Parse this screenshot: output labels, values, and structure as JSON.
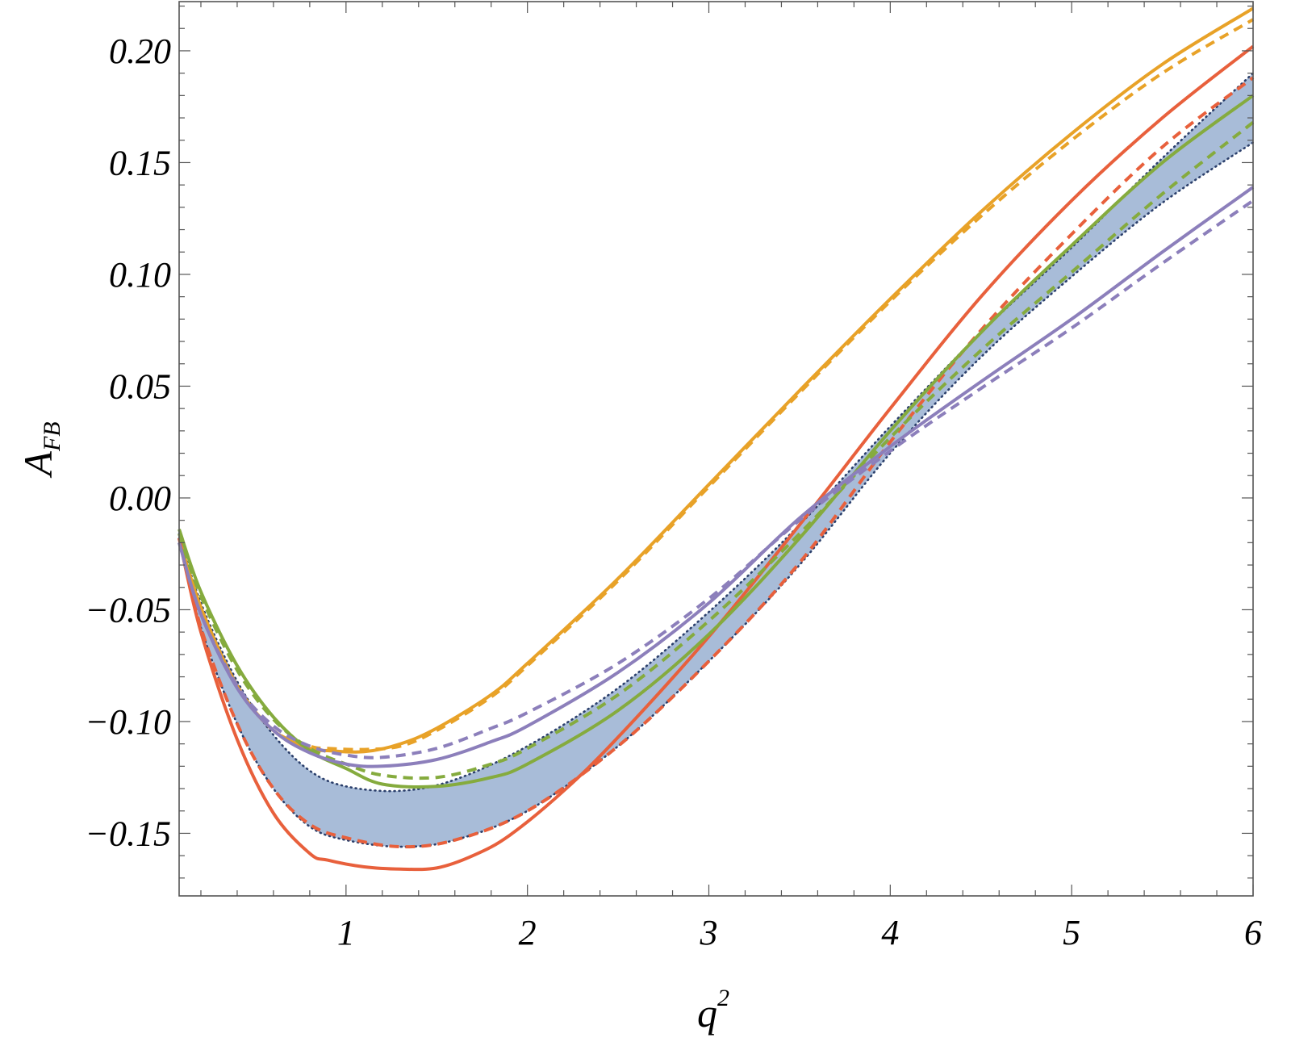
{
  "chart_data": {
    "type": "line",
    "xlabel": "q",
    "xlabel_superscript": "2",
    "ylabel": "A",
    "ylabel_subscript": "FB",
    "xlim": [
      0.08,
      6.0
    ],
    "ylim": [
      -0.178,
      0.222
    ],
    "x_ticks": [
      {
        "value": 1,
        "label": "1"
      },
      {
        "value": 2,
        "label": "2"
      },
      {
        "value": 3,
        "label": "3"
      },
      {
        "value": 4,
        "label": "4"
      },
      {
        "value": 5,
        "label": "5"
      },
      {
        "value": 6,
        "label": "6"
      }
    ],
    "y_ticks": [
      {
        "value": 0.2,
        "label": "0.20"
      },
      {
        "value": 0.15,
        "label": "0.15"
      },
      {
        "value": 0.1,
        "label": "0.10"
      },
      {
        "value": 0.05,
        "label": "0.05"
      },
      {
        "value": 0.0,
        "label": "0.00"
      },
      {
        "value": -0.05,
        "label": "−0.05"
      },
      {
        "value": -0.1,
        "label": "−0.10"
      },
      {
        "value": -0.15,
        "label": "−0.15"
      }
    ],
    "grid": false,
    "legend": "none",
    "band": {
      "fill": "#a8bcd8",
      "edge_color": "#2b3f6b",
      "x": [
        0.08,
        0.2,
        0.4,
        0.6,
        0.8,
        1.0,
        1.3,
        1.6,
        2.0,
        2.5,
        3.0,
        3.5,
        4.0,
        4.5,
        5.0,
        5.5,
        6.0
      ],
      "upper": [
        -0.016,
        -0.047,
        -0.082,
        -0.106,
        -0.122,
        -0.129,
        -0.131,
        -0.126,
        -0.111,
        -0.085,
        -0.051,
        -0.012,
        0.032,
        0.074,
        0.112,
        0.152,
        0.19
      ],
      "lower": [
        -0.018,
        -0.058,
        -0.101,
        -0.13,
        -0.147,
        -0.153,
        -0.156,
        -0.153,
        -0.14,
        -0.111,
        -0.073,
        -0.03,
        0.02,
        0.063,
        0.099,
        0.132,
        0.159
      ]
    },
    "series": [
      {
        "color": "#e8a228",
        "style": "solid",
        "x": [
          0.08,
          0.2,
          0.4,
          0.6,
          0.8,
          0.9,
          1.1,
          1.3,
          1.5,
          1.8,
          2.0,
          2.5,
          3.0,
          3.5,
          4.0,
          4.5,
          5.0,
          5.5,
          6.0
        ],
        "y": [
          -0.018,
          -0.049,
          -0.084,
          -0.104,
          -0.112,
          -0.113,
          -0.1135,
          -0.11,
          -0.103,
          -0.088,
          -0.074,
          -0.036,
          0.006,
          0.048,
          0.089,
          0.128,
          0.163,
          0.194,
          0.219
        ]
      },
      {
        "color": "#e8a228",
        "style": "dashed",
        "x": [
          0.08,
          0.2,
          0.4,
          0.6,
          0.8,
          0.9,
          1.1,
          1.3,
          1.5,
          1.8,
          2.0,
          2.5,
          3.0,
          3.5,
          4.0,
          4.5,
          5.0,
          5.5,
          6.0
        ],
        "y": [
          -0.018,
          -0.049,
          -0.084,
          -0.104,
          -0.111,
          -0.112,
          -0.1125,
          -0.111,
          -0.104,
          -0.089,
          -0.075,
          -0.037,
          0.005,
          0.047,
          0.088,
          0.126,
          0.16,
          0.19,
          0.214
        ]
      },
      {
        "color": "#e8603c",
        "style": "solid",
        "x": [
          0.08,
          0.2,
          0.4,
          0.6,
          0.8,
          0.9,
          1.1,
          1.3,
          1.5,
          1.7,
          1.9,
          2.2,
          2.5,
          3.0,
          3.5,
          4.0,
          4.5,
          5.0,
          5.5,
          6.0
        ],
        "y": [
          -0.018,
          -0.06,
          -0.108,
          -0.141,
          -0.159,
          -0.162,
          -0.165,
          -0.166,
          -0.1655,
          -0.16,
          -0.151,
          -0.131,
          -0.107,
          -0.062,
          -0.012,
          0.04,
          0.09,
          0.133,
          0.17,
          0.202
        ]
      },
      {
        "color": "#e8603c",
        "style": "dashed",
        "x": [
          0.08,
          0.2,
          0.4,
          0.6,
          0.8,
          1.0,
          1.3,
          1.6,
          2.0,
          2.5,
          3.0,
          3.5,
          4.0,
          4.5,
          5.0,
          5.5,
          6.0
        ],
        "y": [
          -0.018,
          -0.058,
          -0.101,
          -0.13,
          -0.146,
          -0.152,
          -0.156,
          -0.153,
          -0.14,
          -0.111,
          -0.073,
          -0.029,
          0.025,
          0.075,
          0.118,
          0.157,
          0.188
        ]
      },
      {
        "color": "#85ab3e",
        "style": "solid",
        "x": [
          0.08,
          0.2,
          0.4,
          0.6,
          0.8,
          1.0,
          1.2,
          1.5,
          1.8,
          2.0,
          2.5,
          3.0,
          3.5,
          4.0,
          4.5,
          5.0,
          5.5,
          6.0
        ],
        "y": [
          -0.014,
          -0.042,
          -0.075,
          -0.098,
          -0.113,
          -0.121,
          -0.128,
          -0.129,
          -0.125,
          -0.119,
          -0.095,
          -0.061,
          -0.018,
          0.03,
          0.074,
          0.113,
          0.15,
          0.18
        ]
      },
      {
        "color": "#85ab3e",
        "style": "dashed",
        "x": [
          0.08,
          0.2,
          0.4,
          0.6,
          0.8,
          1.0,
          1.2,
          1.5,
          1.8,
          2.0,
          2.5,
          3.0,
          3.5,
          4.0,
          4.5,
          5.0,
          5.5,
          6.0
        ],
        "y": [
          -0.016,
          -0.044,
          -0.077,
          -0.099,
          -0.112,
          -0.119,
          -0.124,
          -0.125,
          -0.119,
          -0.112,
          -0.088,
          -0.055,
          -0.016,
          0.027,
          0.066,
          0.101,
          0.136,
          0.168
        ]
      },
      {
        "color": "#8c7fbb",
        "style": "solid",
        "x": [
          0.08,
          0.2,
          0.4,
          0.6,
          0.8,
          1.0,
          1.2,
          1.5,
          1.8,
          2.0,
          2.5,
          3.0,
          3.5,
          4.0,
          4.5,
          5.0,
          5.5,
          6.0
        ],
        "y": [
          -0.02,
          -0.052,
          -0.085,
          -0.104,
          -0.114,
          -0.119,
          -0.12,
          -0.117,
          -0.109,
          -0.102,
          -0.078,
          -0.047,
          -0.009,
          0.023,
          0.052,
          0.08,
          0.11,
          0.139
        ]
      },
      {
        "color": "#8c7fbb",
        "style": "dashed",
        "x": [
          0.08,
          0.2,
          0.4,
          0.6,
          0.8,
          1.0,
          1.2,
          1.5,
          1.8,
          2.0,
          2.5,
          3.0,
          3.5,
          4.0,
          4.5,
          5.0,
          5.5,
          6.0
        ],
        "y": [
          -0.02,
          -0.052,
          -0.084,
          -0.102,
          -0.111,
          -0.115,
          -0.116,
          -0.112,
          -0.103,
          -0.096,
          -0.074,
          -0.045,
          -0.01,
          0.021,
          0.049,
          0.076,
          0.105,
          0.133
        ]
      }
    ]
  }
}
